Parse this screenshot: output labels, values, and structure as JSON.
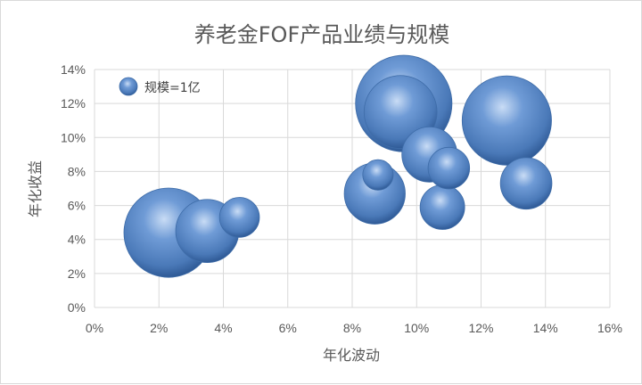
{
  "chart_data": {
    "type": "bubble",
    "title": "养老金FOF产品业绩与规模",
    "xlabel": "年化波动",
    "ylabel": "年化收益",
    "xlim": [
      0,
      16
    ],
    "ylim": [
      0,
      14
    ],
    "x_ticks": [
      "0%",
      "2%",
      "4%",
      "6%",
      "8%",
      "10%",
      "12%",
      "14%",
      "16%"
    ],
    "y_ticks": [
      "0%",
      "2%",
      "4%",
      "6%",
      "8%",
      "10%",
      "12%",
      "14%"
    ],
    "grid": true,
    "legend": {
      "label": "规模=1亿",
      "placement": "top-left"
    },
    "bubble_color": "#4f81bd",
    "points": [
      {
        "x": 2.3,
        "y": 4.4,
        "size": 6.0
      },
      {
        "x": 3.5,
        "y": 4.5,
        "size": 3.0
      },
      {
        "x": 4.5,
        "y": 5.3,
        "size": 1.2
      },
      {
        "x": 8.8,
        "y": 7.8,
        "size": 0.7
      },
      {
        "x": 8.7,
        "y": 6.7,
        "size": 2.8
      },
      {
        "x": 9.6,
        "y": 12.0,
        "size": 7.0
      },
      {
        "x": 9.5,
        "y": 11.5,
        "size": 4.0
      },
      {
        "x": 10.4,
        "y": 9.0,
        "size": 2.3
      },
      {
        "x": 11.0,
        "y": 8.2,
        "size": 1.3
      },
      {
        "x": 10.8,
        "y": 5.9,
        "size": 1.5
      },
      {
        "x": 12.8,
        "y": 11.0,
        "size": 6.0
      },
      {
        "x": 13.4,
        "y": 7.3,
        "size": 2.0
      }
    ]
  }
}
